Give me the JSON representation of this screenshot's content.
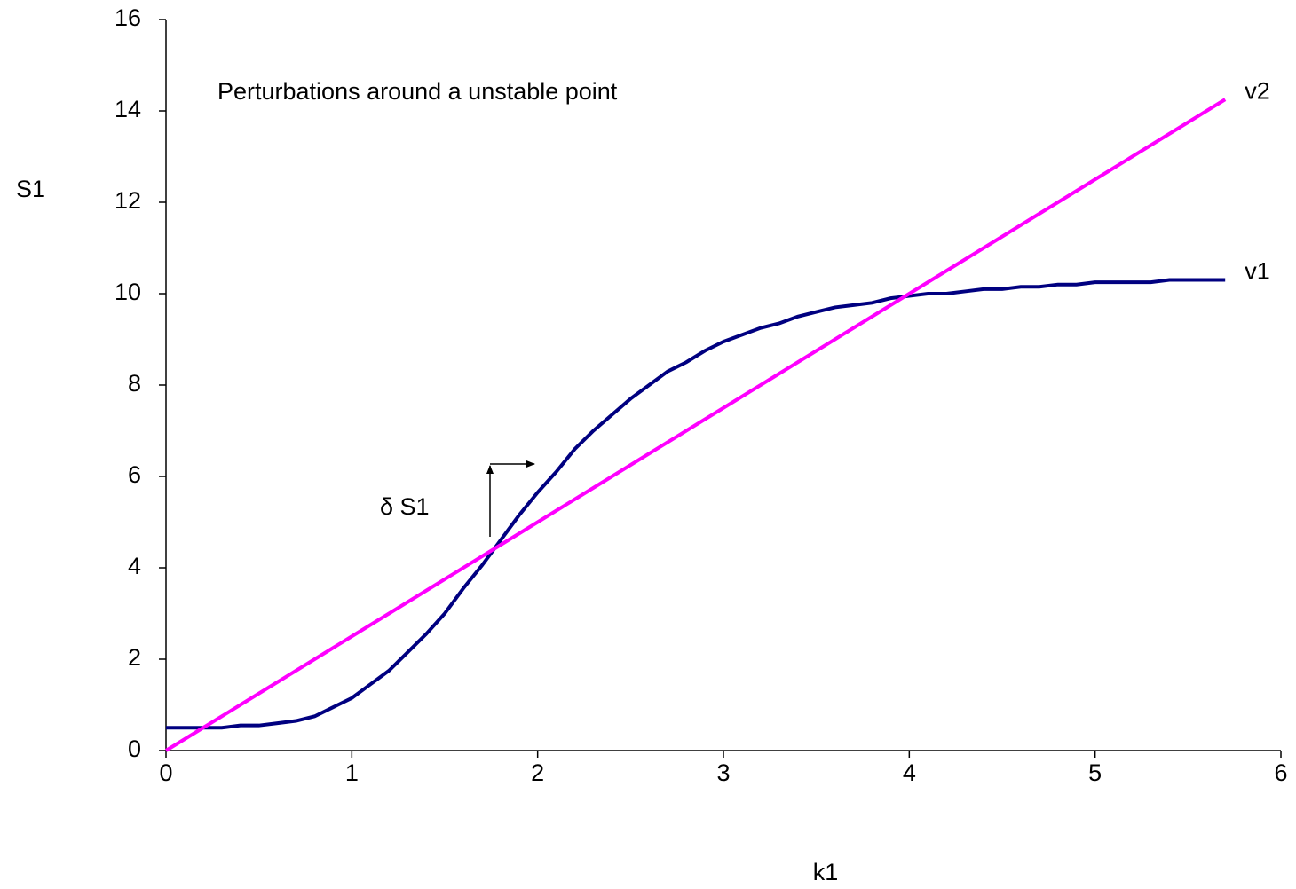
{
  "chart_data": {
    "type": "line",
    "title": "Perturbations around a unstable point",
    "x_label": "k1",
    "y_label": "S1",
    "annotation": "δ S1",
    "x": [
      0,
      0.1,
      0.2,
      0.3,
      0.4,
      0.5,
      0.6,
      0.7,
      0.8,
      0.9,
      1.0,
      1.1,
      1.2,
      1.3,
      1.4,
      1.5,
      1.6,
      1.7,
      1.8,
      1.9,
      2.0,
      2.1,
      2.2,
      2.3,
      2.4,
      2.5,
      2.6,
      2.7,
      2.8,
      2.9,
      3.0,
      3.1,
      3.2,
      3.3,
      3.4,
      3.5,
      3.6,
      3.7,
      3.8,
      3.9,
      4.0,
      4.1,
      4.2,
      4.3,
      4.4,
      4.5,
      4.6,
      4.7,
      4.8,
      4.9,
      5.0,
      5.1,
      5.2,
      5.3,
      5.4,
      5.5,
      5.6,
      5.7
    ],
    "series": [
      {
        "name": "v1",
        "color": "#000080",
        "values": [
          0.5,
          0.5,
          0.5,
          0.5,
          0.55,
          0.55,
          0.6,
          0.65,
          0.75,
          0.95,
          1.15,
          1.45,
          1.75,
          2.15,
          2.55,
          3.0,
          3.55,
          4.05,
          4.6,
          5.15,
          5.65,
          6.1,
          6.6,
          7.0,
          7.35,
          7.7,
          8.0,
          8.3,
          8.5,
          8.75,
          8.95,
          9.1,
          9.25,
          9.35,
          9.5,
          9.6,
          9.7,
          9.75,
          9.8,
          9.9,
          9.95,
          10.0,
          10.0,
          10.05,
          10.1,
          10.1,
          10.15,
          10.15,
          10.2,
          10.2,
          10.25,
          10.25,
          10.25,
          10.25,
          10.3,
          10.3,
          10.3,
          10.3
        ]
      },
      {
        "name": "v2",
        "color": "#ff00ff",
        "values": [
          0,
          0.25,
          0.5,
          0.75,
          1.0,
          1.25,
          1.5,
          1.75,
          2.0,
          2.25,
          2.5,
          2.75,
          3.0,
          3.25,
          3.5,
          3.75,
          4.0,
          4.25,
          4.5,
          4.75,
          5.0,
          5.25,
          5.5,
          5.75,
          6.0,
          6.25,
          6.5,
          6.75,
          7.0,
          7.25,
          7.5,
          7.75,
          8.0,
          8.25,
          8.5,
          8.75,
          9.0,
          9.25,
          9.5,
          9.75,
          10.0,
          10.25,
          10.5,
          10.75,
          11.0,
          11.25,
          11.5,
          11.75,
          12.0,
          12.25,
          12.5,
          12.75,
          13.0,
          13.25,
          13.5,
          13.75,
          14.0,
          14.25
        ]
      }
    ],
    "xlim": [
      0,
      6
    ],
    "xticks": [
      0,
      1,
      2,
      3,
      4,
      5,
      6
    ],
    "ylim": [
      0,
      16
    ],
    "yticks": [
      0,
      2,
      4,
      6,
      8,
      10,
      12,
      14,
      16
    ],
    "grid": false
  }
}
